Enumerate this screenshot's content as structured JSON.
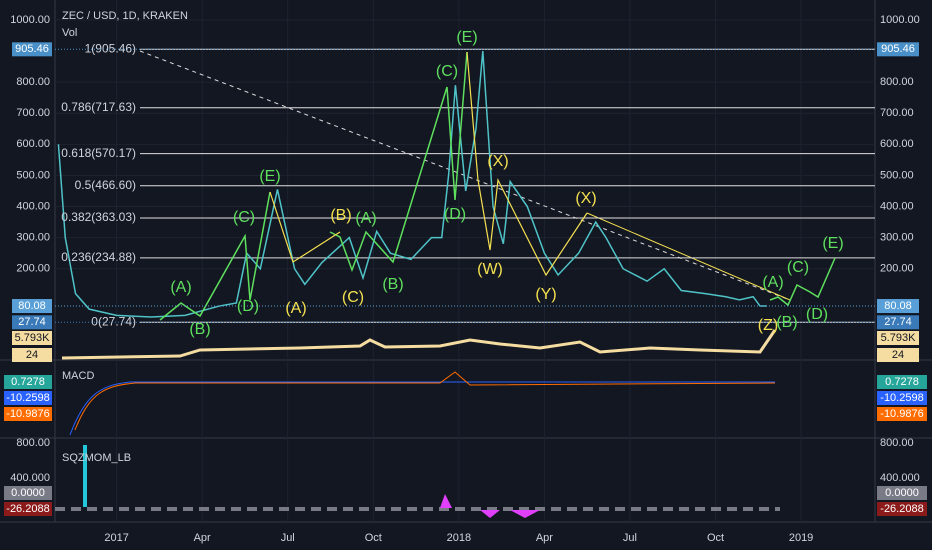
{
  "chart_data": {
    "type": "line",
    "title": "ZEC / USD, 1D, KRAKEN",
    "subtitle": "Vol",
    "x": [
      2016.83,
      2016.85,
      2016.88,
      2016.92,
      2017.0,
      2017.1,
      2017.2,
      2017.3,
      2017.35,
      2017.38,
      2017.42,
      2017.47,
      2017.52,
      2017.55,
      2017.6,
      2017.68,
      2017.72,
      2017.76,
      2017.8,
      2017.86,
      2017.92,
      2017.95,
      2017.97,
      2017.99,
      2018.02,
      2018.05,
      2018.07,
      2018.1,
      2018.13,
      2018.15,
      2018.2,
      2018.25,
      2018.29,
      2018.35,
      2018.4,
      2018.43,
      2018.48,
      2018.55,
      2018.6,
      2018.65,
      2018.72,
      2018.78,
      2018.82,
      2018.86,
      2018.88,
      2018.9
    ],
    "series": [
      {
        "name": "ZEC / USD",
        "color": "#4fc3c8",
        "values": [
          600,
          300,
          120,
          70,
          50,
          45,
          50,
          80,
          90,
          250,
          200,
          455,
          200,
          150,
          220,
          300,
          170,
          320,
          250,
          230,
          300,
          300,
          500,
          790,
          450,
          650,
          900,
          400,
          280,
          480,
          400,
          250,
          180,
          250,
          350,
          300,
          200,
          160,
          200,
          130,
          120,
          110,
          100,
          110,
          80,
          80
        ]
      }
    ],
    "xlim": [
      2016.82,
      2019.216
    ],
    "xticks": [
      2017,
      {
        "value": 2017.25,
        "label": "Apr"
      },
      {
        "value": 2017.5,
        "label": "Jul"
      },
      {
        "value": 2017.75,
        "label": "Oct"
      },
      2018,
      {
        "value": 2018.25,
        "label": "Apr"
      },
      {
        "value": 2018.5,
        "label": "Jul"
      },
      {
        "value": 2018.75,
        "label": "Oct"
      },
      2019
    ],
    "ylim": [
      -87,
      1064
    ],
    "yticks": [
      {
        "value": 200,
        "label": "200.00"
      },
      {
        "value": 300,
        "label": "300.00"
      },
      {
        "value": 400,
        "label": "400.00"
      },
      {
        "value": 500,
        "label": "500.00"
      },
      {
        "value": 600,
        "label": "600.00"
      },
      {
        "value": 700,
        "label": "700.00"
      },
      {
        "value": 800,
        "label": "800.00"
      },
      {
        "value": 1000,
        "label": "1000.00"
      }
    ],
    "grid": true,
    "fib_levels": [
      {
        "value": 905.46,
        "label": "1(905.46)"
      },
      {
        "value": 717.63,
        "label": "0.786(717.63)"
      },
      {
        "value": 570.17,
        "label": "0.618(570.17)"
      },
      {
        "value": 466.6,
        "label": "0.5(466.60)"
      },
      {
        "value": 363.03,
        "label": "0.382(363.03)"
      },
      {
        "value": 234.88,
        "label": "0.236(234.88)"
      },
      {
        "value": 27.74,
        "label": "0(27.74)"
      }
    ],
    "price_labels": [
      {
        "value": 905.46,
        "label": "905.46",
        "color": "#4a90c8"
      },
      {
        "value": 80.08,
        "label": "80.08",
        "color": "#5aa0d8"
      },
      {
        "value": 27.74,
        "label": "27.74",
        "color": "#3a7ab8"
      }
    ],
    "volume_labels": [
      "5.793K",
      "24"
    ],
    "wave_labels": [
      {
        "text": "(A)",
        "color": "#5ee05e"
      },
      {
        "text": "(B)",
        "color": "#5ee05e"
      },
      {
        "text": "(C)",
        "color": "#5ee05e"
      },
      {
        "text": "(D)",
        "color": "#5ee05e"
      },
      {
        "text": "(E)",
        "color": "#5ee05e"
      },
      {
        "text": "(B)",
        "color": "#f5e050"
      },
      {
        "text": "(A)",
        "color": "#5ee05e"
      },
      {
        "text": "(C)",
        "color": "#f5e050"
      },
      {
        "text": "(B)",
        "color": "#5ee05e"
      },
      {
        "text": "(C)",
        "color": "#5ee05e"
      },
      {
        "text": "(E)",
        "color": "#5ee05e"
      },
      {
        "text": "(D)",
        "color": "#5ee05e"
      },
      {
        "text": "(A)",
        "color": "#f5e050"
      },
      {
        "text": "(X)",
        "color": "#f5e050"
      },
      {
        "text": "(W)",
        "color": "#f5e050"
      },
      {
        "text": "(Y)",
        "color": "#f5e050"
      },
      {
        "text": "(X)",
        "color": "#f5e050"
      },
      {
        "text": "(Z)",
        "color": "#f5e050"
      },
      {
        "text": "(A)",
        "color": "#5ee05e"
      },
      {
        "text": "(B)",
        "color": "#5ee05e"
      },
      {
        "text": "(C)",
        "color": "#5ee05e"
      },
      {
        "text": "(D)",
        "color": "#5ee05e"
      },
      {
        "text": "(E)",
        "color": "#5ee05e"
      }
    ],
    "macd": {
      "title": "MACD",
      "labels": [
        {
          "label": "0.7278",
          "color": "#26a69a"
        },
        {
          "label": "-10.2598",
          "color": "#2962ff"
        },
        {
          "label": "-10.9876",
          "color": "#ff6d00"
        }
      ]
    },
    "squeeze": {
      "title": "SQZMOM_LB",
      "ticks": [
        "800.00",
        "400.000"
      ],
      "labels": [
        {
          "label": "0.0000",
          "color": "#787b86"
        },
        {
          "label": "-26.2088",
          "color": "#8b1a1a"
        }
      ]
    }
  }
}
